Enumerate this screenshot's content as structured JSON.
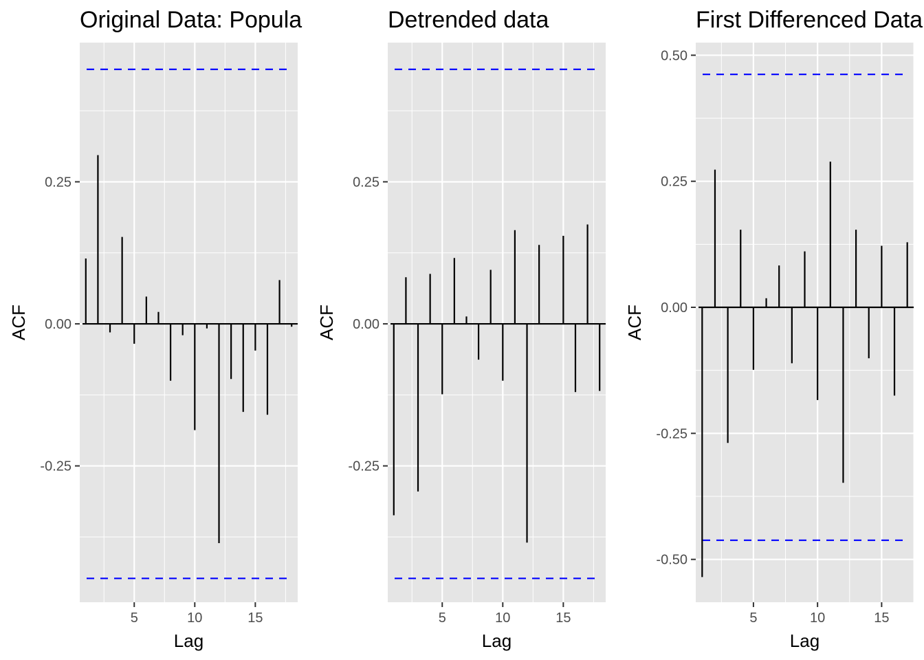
{
  "chart_data": [
    {
      "type": "bar",
      "title": "Original Data: Popula",
      "xlabel": "Lag",
      "ylabel": "ACF",
      "xlim": [
        0.5,
        18.5
      ],
      "ylim": [
        -0.49,
        0.495
      ],
      "xticks": [
        5,
        10,
        15
      ],
      "xtick_labels": [
        "5",
        "10",
        "15"
      ],
      "yticks": [
        0.25,
        0,
        -0.25
      ],
      "ytick_labels": [
        "0.25",
        "0.00",
        "-0.25"
      ],
      "ci": 0.448,
      "ci_color": "#0000ff",
      "bar_color": "#000000",
      "panel_bg": "#e5e5e5",
      "grid": true,
      "x": [
        1,
        2,
        3,
        4,
        5,
        6,
        7,
        8,
        9,
        10,
        11,
        12,
        13,
        14,
        15,
        16,
        17,
        18
      ],
      "values": [
        0.115,
        0.297,
        -0.015,
        0.153,
        -0.035,
        0.048,
        0.021,
        -0.1,
        -0.02,
        -0.187,
        -0.008,
        -0.386,
        -0.097,
        -0.155,
        -0.047,
        -0.16,
        0.077,
        -0.005
      ]
    },
    {
      "type": "bar",
      "title": "Detrended data",
      "xlabel": "Lag",
      "ylabel": "ACF",
      "xlim": [
        0.5,
        18.5
      ],
      "ylim": [
        -0.49,
        0.495
      ],
      "xticks": [
        5,
        10,
        15
      ],
      "xtick_labels": [
        "5",
        "10",
        "15"
      ],
      "yticks": [
        0.25,
        0,
        -0.25
      ],
      "ytick_labels": [
        "0.25",
        "0.00",
        "-0.25"
      ],
      "ci": 0.448,
      "ci_color": "#0000ff",
      "bar_color": "#000000",
      "panel_bg": "#e5e5e5",
      "grid": true,
      "x": [
        1,
        2,
        3,
        4,
        5,
        6,
        7,
        8,
        9,
        10,
        11,
        12,
        13,
        14,
        15,
        16,
        17,
        18
      ],
      "values": [
        -0.337,
        0.082,
        -0.295,
        0.088,
        -0.124,
        0.116,
        0.013,
        -0.063,
        0.095,
        -0.1,
        0.165,
        -0.385,
        0.139,
        0.001,
        0.155,
        -0.12,
        0.175,
        -0.118
      ]
    },
    {
      "type": "bar",
      "title": "First Differenced Data",
      "xlabel": "Lag",
      "ylabel": "ACF",
      "xlim": [
        0.5,
        17.5
      ],
      "ylim": [
        -0.585,
        0.525
      ],
      "xticks": [
        5,
        10,
        15
      ],
      "xtick_labels": [
        "5",
        "10",
        "15"
      ],
      "yticks": [
        0.5,
        0.25,
        0,
        -0.25,
        -0.5
      ],
      "ytick_labels": [
        "0.50",
        "0.25",
        "0.00",
        "-0.25",
        "-0.50"
      ],
      "ci": 0.462,
      "ci_color": "#0000ff",
      "bar_color": "#000000",
      "panel_bg": "#e5e5e5",
      "grid": true,
      "x": [
        1,
        2,
        3,
        4,
        5,
        6,
        7,
        8,
        9,
        10,
        11,
        12,
        13,
        14,
        15,
        16,
        17
      ],
      "values": [
        -0.535,
        0.273,
        -0.269,
        0.154,
        -0.124,
        0.018,
        0.083,
        -0.111,
        0.111,
        -0.184,
        0.289,
        -0.348,
        0.154,
        -0.101,
        0.122,
        -0.175,
        0.129
      ]
    }
  ]
}
